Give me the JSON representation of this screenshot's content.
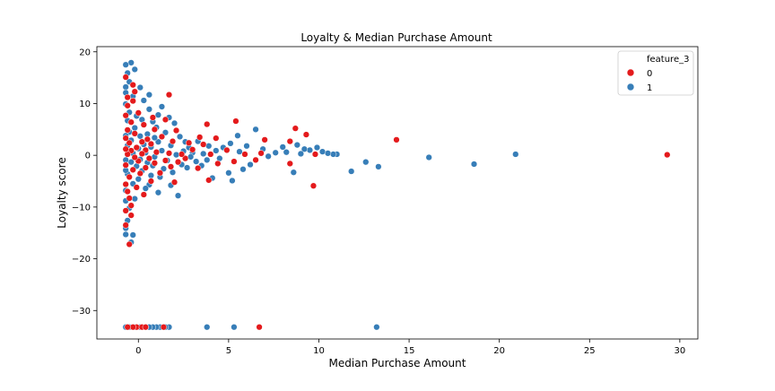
{
  "chart_data": {
    "type": "scatter",
    "title": "Loyalty & Median Purchase Amount",
    "xlabel": "Median Purchase Amount",
    "ylabel": "Loyalty score",
    "xlim": [
      -2.3,
      31
    ],
    "ylim": [
      -35.5,
      21
    ],
    "xticks": [
      0,
      5,
      10,
      15,
      20,
      25,
      30
    ],
    "yticks": [
      20,
      10,
      0,
      -10,
      -20,
      -30
    ],
    "grid": false,
    "legend": {
      "title": "feature_3",
      "placement": "top-right"
    },
    "series": [
      {
        "name": "0",
        "color": "#e41a1c",
        "points": [
          [
            29.3,
            0.1
          ],
          [
            14.3,
            3.0
          ],
          [
            9.7,
            -5.9
          ],
          [
            9.3,
            4.0
          ],
          [
            9.8,
            0.2
          ],
          [
            8.7,
            5.2
          ],
          [
            8.4,
            2.7
          ],
          [
            8.4,
            -1.6
          ],
          [
            7.0,
            3.0
          ],
          [
            6.8,
            0.4
          ],
          [
            6.5,
            -0.9
          ],
          [
            5.9,
            0.2
          ],
          [
            5.4,
            6.6
          ],
          [
            5.3,
            -1.2
          ],
          [
            4.9,
            1.0
          ],
          [
            4.4,
            -1.6
          ],
          [
            4.3,
            3.3
          ],
          [
            4.0,
            0.2
          ],
          [
            3.9,
            -4.8
          ],
          [
            3.8,
            6.0
          ],
          [
            3.6,
            2.1
          ],
          [
            3.4,
            3.5
          ],
          [
            3.3,
            -2.5
          ],
          [
            3.0,
            1.1
          ],
          [
            2.8,
            2.4
          ],
          [
            2.6,
            -0.6
          ],
          [
            2.4,
            0.2
          ],
          [
            2.2,
            -1.3
          ],
          [
            2.1,
            4.8
          ],
          [
            2.0,
            -5.2
          ],
          [
            1.9,
            2.7
          ],
          [
            1.8,
            -2.2
          ],
          [
            1.7,
            0.4
          ],
          [
            1.7,
            11.7
          ],
          [
            1.5,
            6.9
          ],
          [
            1.5,
            -1.0
          ],
          [
            1.3,
            3.6
          ],
          [
            1.2,
            -3.4
          ],
          [
            1.0,
            0.6
          ],
          [
            0.9,
            5.0
          ],
          [
            0.9,
            -1.5
          ],
          [
            0.8,
            7.3
          ],
          [
            0.7,
            2.2
          ],
          [
            0.7,
            -5.0
          ],
          [
            0.6,
            -0.6
          ],
          [
            0.5,
            3.1
          ],
          [
            0.4,
            -2.4
          ],
          [
            0.4,
            1.0
          ],
          [
            0.3,
            5.9
          ],
          [
            0.3,
            -7.6
          ],
          [
            0.2,
            0.3
          ],
          [
            0.2,
            2.6
          ],
          [
            0.1,
            -3.5
          ],
          [
            0.0,
            8.2
          ],
          [
            0.0,
            -1.1
          ],
          [
            -0.1,
            1.5
          ],
          [
            -0.1,
            -6.2
          ],
          [
            -0.2,
            4.2
          ],
          [
            -0.2,
            -0.4
          ],
          [
            -0.3,
            10.5
          ],
          [
            -0.3,
            -2.8
          ],
          [
            -0.3,
            13.6
          ],
          [
            -0.4,
            0.9
          ],
          [
            -0.4,
            -9.7
          ],
          [
            -0.4,
            6.4
          ],
          [
            -0.5,
            -4.2
          ],
          [
            -0.5,
            2.4
          ],
          [
            -0.5,
            -17.2
          ],
          [
            -0.6,
            0.2
          ],
          [
            -0.6,
            11.2
          ],
          [
            -0.6,
            -7.0
          ],
          [
            -0.6,
            4.9
          ],
          [
            -0.7,
            -1.9
          ],
          [
            -0.7,
            7.7
          ],
          [
            -0.7,
            -13.5
          ],
          [
            -0.7,
            15.1
          ],
          [
            -0.7,
            1.2
          ],
          [
            -0.7,
            -5.6
          ],
          [
            -0.7,
            3.3
          ],
          [
            -0.7,
            -10.7
          ],
          [
            -0.6,
            9.6
          ],
          [
            -0.5,
            -8.3
          ],
          [
            -0.4,
            -11.6
          ],
          [
            -0.2,
            12.3
          ],
          [
            6.7,
            -33.2
          ],
          [
            -0.1,
            -33.2
          ],
          [
            -0.3,
            -33.2
          ],
          [
            -0.6,
            -33.2
          ],
          [
            0.2,
            -33.2
          ],
          [
            0.4,
            -33.2
          ],
          [
            1.4,
            -33.2
          ]
        ]
      },
      {
        "name": "1",
        "color": "#377eb8",
        "points": [
          [
            20.9,
            0.2
          ],
          [
            18.6,
            -1.7
          ],
          [
            16.1,
            -0.4
          ],
          [
            13.3,
            -2.2
          ],
          [
            12.6,
            -1.3
          ],
          [
            11.8,
            -3.1
          ],
          [
            11.0,
            0.2
          ],
          [
            10.8,
            0.2
          ],
          [
            10.5,
            0.4
          ],
          [
            10.2,
            0.7
          ],
          [
            9.9,
            1.5
          ],
          [
            9.5,
            1.0
          ],
          [
            9.2,
            1.2
          ],
          [
            9.0,
            0.3
          ],
          [
            8.8,
            2.0
          ],
          [
            8.6,
            -3.3
          ],
          [
            8.2,
            0.6
          ],
          [
            8.0,
            1.6
          ],
          [
            7.6,
            0.5
          ],
          [
            7.2,
            -0.2
          ],
          [
            6.9,
            1.2
          ],
          [
            6.5,
            5.0
          ],
          [
            6.2,
            -1.8
          ],
          [
            6.0,
            1.8
          ],
          [
            5.8,
            -2.7
          ],
          [
            5.6,
            0.7
          ],
          [
            5.5,
            3.8
          ],
          [
            5.2,
            -4.9
          ],
          [
            5.1,
            2.3
          ],
          [
            5.0,
            -3.4
          ],
          [
            4.7,
            1.5
          ],
          [
            4.5,
            -0.6
          ],
          [
            4.3,
            0.9
          ],
          [
            4.1,
            -4.4
          ],
          [
            3.9,
            1.8
          ],
          [
            3.8,
            -0.9
          ],
          [
            3.6,
            0.3
          ],
          [
            3.5,
            -2.0
          ],
          [
            3.3,
            2.7
          ],
          [
            3.2,
            -1.2
          ],
          [
            3.0,
            0.5
          ],
          [
            2.9,
            -0.3
          ],
          [
            2.8,
            1.5
          ],
          [
            2.7,
            -2.4
          ],
          [
            2.6,
            2.6
          ],
          [
            2.5,
            0.8
          ],
          [
            2.4,
            -1.8
          ],
          [
            2.3,
            3.6
          ],
          [
            2.2,
            -7.8
          ],
          [
            2.1,
            0.1
          ],
          [
            2.0,
            6.2
          ],
          [
            1.9,
            -3.3
          ],
          [
            1.8,
            1.9
          ],
          [
            1.8,
            -5.8
          ],
          [
            1.7,
            7.3
          ],
          [
            1.6,
            -1.0
          ],
          [
            1.5,
            4.4
          ],
          [
            1.4,
            -2.6
          ],
          [
            1.3,
            0.9
          ],
          [
            1.3,
            9.4
          ],
          [
            1.2,
            -4.2
          ],
          [
            1.1,
            2.6
          ],
          [
            1.1,
            -7.2
          ],
          [
            1.0,
            5.4
          ],
          [
            0.9,
            -0.3
          ],
          [
            0.9,
            3.4
          ],
          [
            0.8,
            -2.0
          ],
          [
            0.8,
            6.5
          ],
          [
            0.7,
            -3.9
          ],
          [
            0.7,
            1.6
          ],
          [
            0.6,
            -5.7
          ],
          [
            0.6,
            8.9
          ],
          [
            0.5,
            -1.4
          ],
          [
            0.5,
            4.1
          ],
          [
            0.4,
            0.5
          ],
          [
            0.4,
            -6.4
          ],
          [
            0.3,
            2.1
          ],
          [
            0.3,
            10.6
          ],
          [
            0.2,
            -3.0
          ],
          [
            0.2,
            6.9
          ],
          [
            0.1,
            -0.8
          ],
          [
            0.1,
            3.7
          ],
          [
            0.0,
            -4.6
          ],
          [
            0.0,
            1.3
          ],
          [
            -0.1,
            7.6
          ],
          [
            -0.1,
            -2.1
          ],
          [
            -0.2,
            5.3
          ],
          [
            -0.2,
            -8.4
          ],
          [
            -0.3,
            0.4
          ],
          [
            -0.3,
            11.4
          ],
          [
            -0.3,
            -5.5
          ],
          [
            -0.4,
            2.9
          ],
          [
            -0.4,
            -1.3
          ],
          [
            -0.4,
            17.9
          ],
          [
            -0.5,
            8.3
          ],
          [
            -0.5,
            -10.2
          ],
          [
            -0.5,
            4.5
          ],
          [
            -0.6,
            -3.6
          ],
          [
            -0.6,
            15.9
          ],
          [
            -0.6,
            1.9
          ],
          [
            -0.6,
            -12.6
          ],
          [
            -0.6,
            6.7
          ],
          [
            -0.7,
            -0.9
          ],
          [
            -0.7,
            13.2
          ],
          [
            -0.7,
            -6.8
          ],
          [
            -0.7,
            9.9
          ],
          [
            -0.7,
            -15.3
          ],
          [
            -0.7,
            3.8
          ],
          [
            -0.7,
            -2.9
          ],
          [
            -0.7,
            17.5
          ],
          [
            -0.7,
            12.1
          ],
          [
            -0.7,
            -8.8
          ],
          [
            -0.7,
            -14.1
          ],
          [
            -0.5,
            14.2
          ],
          [
            -0.4,
            -16.8
          ],
          [
            -0.3,
            -15.4
          ],
          [
            -0.2,
            16.6
          ],
          [
            0.1,
            13.1
          ],
          [
            0.6,
            11.7
          ],
          [
            1.1,
            7.8
          ],
          [
            13.2,
            -33.2
          ],
          [
            5.3,
            -33.2
          ],
          [
            3.8,
            -33.2
          ],
          [
            1.7,
            -33.2
          ],
          [
            1.5,
            -33.2
          ],
          [
            1.2,
            -33.2
          ],
          [
            1.0,
            -33.2
          ],
          [
            0.8,
            -33.2
          ],
          [
            0.6,
            -33.2
          ],
          [
            0.4,
            -33.2
          ],
          [
            0.1,
            -33.2
          ],
          [
            -0.2,
            -33.2
          ],
          [
            -0.5,
            -33.2
          ],
          [
            -0.7,
            -33.2
          ]
        ]
      }
    ]
  }
}
